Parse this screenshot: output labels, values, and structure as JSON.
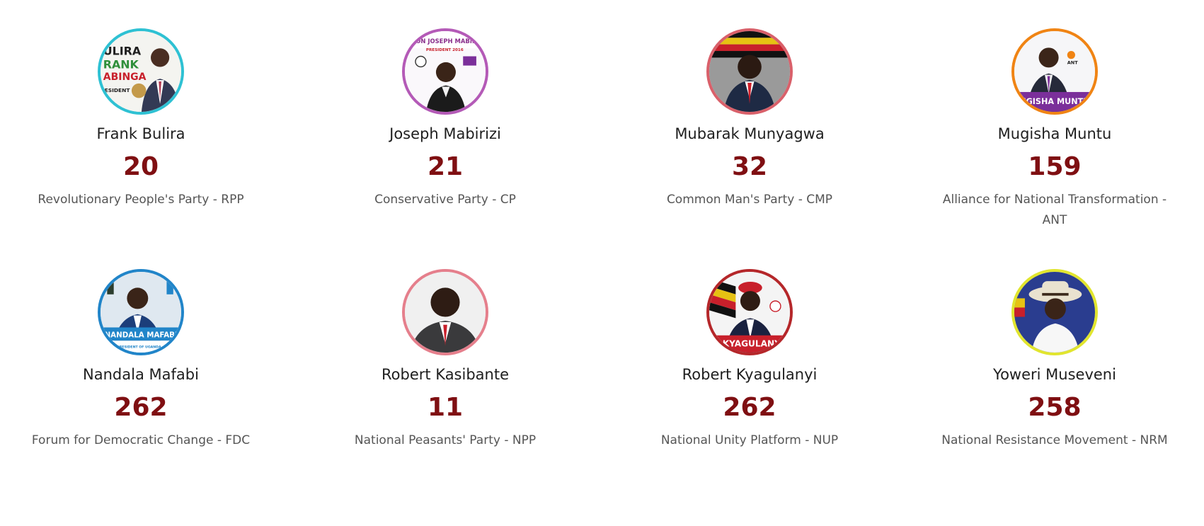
{
  "candidates": [
    {
      "name": "Frank Bulira",
      "votes": "20",
      "party": "Revolutionary People's Party - RPP",
      "ring_color": "#2ec1d3",
      "poster_text": "ULIRA RANK ABINGA",
      "poster_text_2": "ESIDENT"
    },
    {
      "name": "Joseph Mabirizi",
      "votes": "21",
      "party": "Conservative Party - CP",
      "ring_color": "#b45ab7",
      "poster_text": "LTON JOSEPH MABIRI",
      "poster_text_2": "PRESIDENT 2016"
    },
    {
      "name": "Mubarak Munyagwa",
      "votes": "32",
      "party": "Common Man's Party - CMP",
      "ring_color": "#d9606a",
      "poster_text": "",
      "poster_text_2": ""
    },
    {
      "name": "Mugisha Muntu",
      "votes": "159",
      "party": "Alliance for National Transformation - ANT",
      "ring_color": "#f08414",
      "poster_text": "UGISHA MUNTU",
      "poster_text_2": "ANT"
    },
    {
      "name": "Nandala Mafabi",
      "votes": "262",
      "party": "Forum for Democratic Change - FDC",
      "ring_color": "#2185c9",
      "poster_text": "NANDALA MAFABI",
      "poster_text_2": "FDC PRESIDENT OF UGANDA"
    },
    {
      "name": "Robert Kasibante",
      "votes": "11",
      "party": "National Peasants' Party - NPP",
      "ring_color": "#e57f8c",
      "poster_text": "",
      "poster_text_2": ""
    },
    {
      "name": "Robert Kyagulanyi",
      "votes": "262",
      "party": "National Unity Platform - NUP",
      "ring_color": "#b5272a",
      "poster_text": "KYAGULANYI",
      "poster_text_2": ""
    },
    {
      "name": "Yoweri Museveni",
      "votes": "258",
      "party": "National Resistance Movement - NRM",
      "ring_color": "#e1e52e",
      "poster_text": "",
      "poster_text_2": ""
    }
  ]
}
